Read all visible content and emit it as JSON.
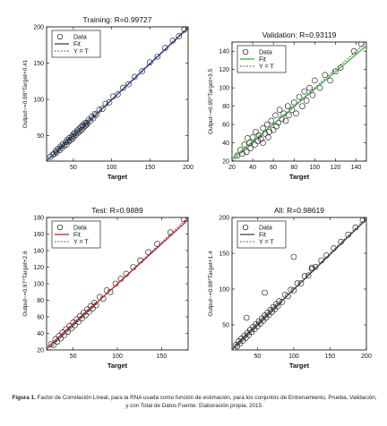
{
  "caption": {
    "lead": "Figura 1.",
    "text": "Factor de Correlación Lineal, para la RNA usada como función de estimación, para los conjuntos de Entrenamiento, Prueba, Validación, y con Total de Datos Fuente: Elaboración propia, 2015."
  },
  "chart_data": [
    {
      "type": "scatter",
      "title": "Training: R=0.99727",
      "xlabel": "Target",
      "ylabel": "Output~=0.99*Target+0.41",
      "xlim": [
        15,
        200
      ],
      "ylim": [
        15,
        200
      ],
      "xticks": [
        50,
        100,
        150,
        200
      ],
      "yticks": [
        50,
        100,
        150,
        200
      ],
      "fit_color": "#1f3f8f",
      "fit": {
        "slope": 0.99,
        "intercept": 0.41
      },
      "legend": [
        "Data",
        "Fit",
        "Y = T"
      ],
      "legend_position": "top-left",
      "points": [
        [
          20,
          21
        ],
        [
          23,
          24
        ],
        [
          25,
          25
        ],
        [
          27,
          29
        ],
        [
          28,
          27
        ],
        [
          30,
          32
        ],
        [
          32,
          30
        ],
        [
          33,
          35
        ],
        [
          35,
          33
        ],
        [
          36,
          38
        ],
        [
          38,
          36
        ],
        [
          40,
          41
        ],
        [
          41,
          38
        ],
        [
          42,
          44
        ],
        [
          44,
          42
        ],
        [
          45,
          47
        ],
        [
          46,
          44
        ],
        [
          48,
          49
        ],
        [
          49,
          46
        ],
        [
          50,
          52
        ],
        [
          51,
          49
        ],
        [
          52,
          54
        ],
        [
          53,
          51
        ],
        [
          55,
          57
        ],
        [
          56,
          54
        ],
        [
          57,
          59
        ],
        [
          58,
          56
        ],
        [
          60,
          62
        ],
        [
          61,
          58
        ],
        [
          62,
          64
        ],
        [
          63,
          61
        ],
        [
          65,
          67
        ],
        [
          66,
          64
        ],
        [
          67,
          68
        ],
        [
          68,
          66
        ],
        [
          70,
          72
        ],
        [
          72,
          70
        ],
        [
          74,
          76
        ],
        [
          76,
          74
        ],
        [
          78,
          80
        ],
        [
          80,
          79
        ],
        [
          84,
          86
        ],
        [
          88,
          87
        ],
        [
          92,
          94
        ],
        [
          97,
          96
        ],
        [
          102,
          104
        ],
        [
          108,
          107
        ],
        [
          115,
          116
        ],
        [
          122,
          121
        ],
        [
          130,
          131
        ],
        [
          140,
          139
        ],
        [
          150,
          151
        ],
        [
          160,
          159
        ],
        [
          170,
          171
        ],
        [
          180,
          181
        ],
        [
          188,
          187
        ],
        [
          195,
          196
        ],
        [
          200,
          200
        ]
      ]
    },
    {
      "type": "scatter",
      "title": "Validation: R=0.93119",
      "xlabel": "Target",
      "ylabel": "Output~=0.95*Target+3.5",
      "xlim": [
        20,
        150
      ],
      "ylim": [
        20,
        150
      ],
      "xticks": [
        20,
        40,
        60,
        80,
        100,
        120,
        140
      ],
      "yticks": [
        20,
        40,
        60,
        80,
        100,
        120,
        140
      ],
      "fit_color": "#3fae3f",
      "fit": {
        "slope": 0.95,
        "intercept": 3.5
      },
      "legend": [
        "Data",
        "Fit",
        "Y = T"
      ],
      "legend_position": "top-left",
      "points": [
        [
          25,
          26
        ],
        [
          28,
          32
        ],
        [
          30,
          28
        ],
        [
          32,
          38
        ],
        [
          34,
          30
        ],
        [
          35,
          45
        ],
        [
          37,
          40
        ],
        [
          38,
          34
        ],
        [
          40,
          46
        ],
        [
          42,
          38
        ],
        [
          43,
          52
        ],
        [
          45,
          42
        ],
        [
          46,
          48
        ],
        [
          48,
          44
        ],
        [
          50,
          56
        ],
        [
          50,
          40
        ],
        [
          52,
          50
        ],
        [
          54,
          60
        ],
        [
          55,
          46
        ],
        [
          56,
          52
        ],
        [
          58,
          64
        ],
        [
          60,
          54
        ],
        [
          62,
          70
        ],
        [
          63,
          58
        ],
        [
          65,
          62
        ],
        [
          66,
          76
        ],
        [
          68,
          66
        ],
        [
          70,
          72
        ],
        [
          72,
          64
        ],
        [
          74,
          80
        ],
        [
          75,
          70
        ],
        [
          78,
          76
        ],
        [
          80,
          84
        ],
        [
          82,
          72
        ],
        [
          85,
          90
        ],
        [
          88,
          80
        ],
        [
          90,
          96
        ],
        [
          92,
          86
        ],
        [
          95,
          100
        ],
        [
          98,
          92
        ],
        [
          100,
          108
        ],
        [
          105,
          100
        ],
        [
          110,
          114
        ],
        [
          115,
          108
        ],
        [
          120,
          118
        ],
        [
          125,
          122
        ],
        [
          138,
          140
        ],
        [
          145,
          148
        ],
        [
          120,
          155
        ]
      ]
    },
    {
      "type": "scatter",
      "title": "Test: R=0.9889",
      "xlabel": "Target",
      "ylabel": "Output~=0.97*Target+2.6",
      "xlim": [
        20,
        180
      ],
      "ylim": [
        20,
        180
      ],
      "xticks": [
        50,
        100,
        150
      ],
      "yticks": [
        20,
        40,
        60,
        80,
        100,
        120,
        140,
        160,
        180
      ],
      "fit_color": "#cc1f1f",
      "fit": {
        "slope": 0.97,
        "intercept": 2.6
      },
      "legend": [
        "Data",
        "Fit",
        "Y = T"
      ],
      "legend_position": "top-left",
      "points": [
        [
          25,
          27
        ],
        [
          28,
          26
        ],
        [
          30,
          33
        ],
        [
          32,
          30
        ],
        [
          34,
          37
        ],
        [
          36,
          34
        ],
        [
          38,
          41
        ],
        [
          40,
          38
        ],
        [
          42,
          45
        ],
        [
          44,
          42
        ],
        [
          46,
          49
        ],
        [
          48,
          46
        ],
        [
          50,
          53
        ],
        [
          52,
          50
        ],
        [
          54,
          57
        ],
        [
          56,
          54
        ],
        [
          58,
          61
        ],
        [
          60,
          58
        ],
        [
          62,
          65
        ],
        [
          64,
          62
        ],
        [
          66,
          69
        ],
        [
          68,
          66
        ],
        [
          70,
          73
        ],
        [
          72,
          70
        ],
        [
          74,
          77
        ],
        [
          76,
          74
        ],
        [
          80,
          84
        ],
        [
          84,
          82
        ],
        [
          88,
          92
        ],
        [
          92,
          90
        ],
        [
          98,
          100
        ],
        [
          104,
          106
        ],
        [
          110,
          112
        ],
        [
          118,
          120
        ],
        [
          126,
          128
        ],
        [
          135,
          138
        ],
        [
          145,
          148
        ],
        [
          160,
          162
        ],
        [
          175,
          178
        ]
      ]
    },
    {
      "type": "scatter",
      "title": "All: R=0.98619",
      "xlabel": "Target",
      "ylabel": "Output~=0.98*Target+1.4",
      "xlim": [
        15,
        200
      ],
      "ylim": [
        15,
        200
      ],
      "xticks": [
        50,
        100,
        150,
        200
      ],
      "yticks": [
        50,
        100,
        150,
        200
      ],
      "fit_color": "#444444",
      "fit": {
        "slope": 0.98,
        "intercept": 1.4
      },
      "legend": [
        "Data",
        "Fit",
        "Y = T"
      ],
      "legend_position": "top-left",
      "points": [
        [
          20,
          22
        ],
        [
          22,
          20
        ],
        [
          24,
          27
        ],
        [
          26,
          24
        ],
        [
          28,
          31
        ],
        [
          30,
          28
        ],
        [
          32,
          35
        ],
        [
          34,
          32
        ],
        [
          36,
          39
        ],
        [
          38,
          36
        ],
        [
          40,
          43
        ],
        [
          42,
          40
        ],
        [
          44,
          47
        ],
        [
          46,
          44
        ],
        [
          48,
          51
        ],
        [
          50,
          48
        ],
        [
          52,
          55
        ],
        [
          54,
          52
        ],
        [
          56,
          59
        ],
        [
          58,
          56
        ],
        [
          60,
          63
        ],
        [
          62,
          60
        ],
        [
          64,
          67
        ],
        [
          66,
          64
        ],
        [
          68,
          71
        ],
        [
          70,
          68
        ],
        [
          72,
          75
        ],
        [
          74,
          72
        ],
        [
          76,
          79
        ],
        [
          78,
          76
        ],
        [
          80,
          83
        ],
        [
          84,
          82
        ],
        [
          88,
          92
        ],
        [
          92,
          90
        ],
        [
          96,
          99
        ],
        [
          100,
          98
        ],
        [
          105,
          108
        ],
        [
          110,
          108
        ],
        [
          115,
          118
        ],
        [
          120,
          119
        ],
        [
          125,
          128
        ],
        [
          130,
          131
        ],
        [
          138,
          140
        ],
        [
          145,
          147
        ],
        [
          155,
          157
        ],
        [
          165,
          166
        ],
        [
          175,
          176
        ],
        [
          185,
          186
        ],
        [
          195,
          196
        ],
        [
          200,
          200
        ],
        [
          100,
          145
        ],
        [
          125,
          130
        ],
        [
          35,
          60
        ],
        [
          60,
          95
        ]
      ]
    }
  ]
}
